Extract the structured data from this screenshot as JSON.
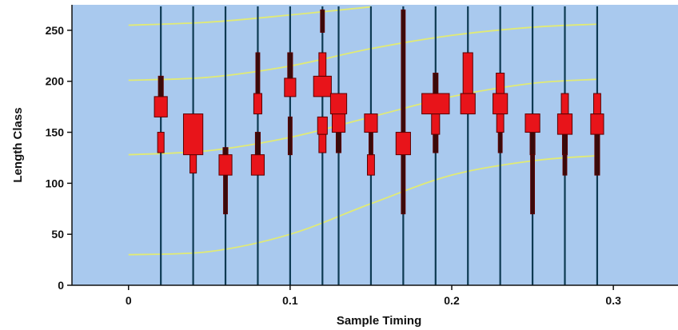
{
  "chart_data": {
    "type": "scatter",
    "title": "",
    "xlabel": "Sample Timing",
    "ylabel": "Length Class",
    "xlim": [
      -0.035,
      0.34
    ],
    "ylim": [
      0,
      275
    ],
    "x_ticks": [
      0,
      0.1,
      0.2,
      0.3
    ],
    "x_tick_labels": [
      "0",
      "0.1",
      "0.2",
      "0.3"
    ],
    "y_ticks": [
      0,
      50,
      100,
      150,
      200,
      250
    ],
    "y_tick_labels": [
      "0",
      "50",
      "100",
      "150",
      "200",
      "250"
    ],
    "grid": false,
    "legend": "none",
    "colors": {
      "plot_background": "#a9c9ee",
      "sample_line": "#0d3a52",
      "frequency_bar": "#e8141a",
      "frequency_bar_edge": "#5a0000",
      "growth_curve": "#e4ec6e"
    },
    "sample_times": [
      0.02,
      0.04,
      0.06,
      0.08,
      0.1,
      0.12,
      0.13,
      0.15,
      0.17,
      0.19,
      0.21,
      0.23,
      0.25,
      0.27,
      0.29
    ],
    "length_frequency_bars": [
      {
        "x": 0.02,
        "segments": [
          [
            130,
            150,
            0.002
          ],
          [
            165,
            185,
            0.004
          ],
          [
            185,
            205,
            0.0015
          ]
        ]
      },
      {
        "x": 0.04,
        "segments": [
          [
            110,
            128,
            0.002
          ],
          [
            128,
            168,
            0.006
          ]
        ]
      },
      {
        "x": 0.06,
        "segments": [
          [
            70,
            108,
            0.0012
          ],
          [
            108,
            128,
            0.004
          ],
          [
            128,
            135,
            0.0015
          ]
        ]
      },
      {
        "x": 0.08,
        "segments": [
          [
            108,
            128,
            0.004
          ],
          [
            128,
            150,
            0.0015
          ],
          [
            168,
            188,
            0.0025
          ],
          [
            188,
            228,
            0.0012
          ]
        ]
      },
      {
        "x": 0.1,
        "segments": [
          [
            128,
            165,
            0.0012
          ],
          [
            185,
            203,
            0.0035
          ],
          [
            203,
            228,
            0.0015
          ]
        ]
      },
      {
        "x": 0.12,
        "segments": [
          [
            130,
            148,
            0.0022
          ],
          [
            148,
            165,
            0.003
          ],
          [
            185,
            205,
            0.0055
          ],
          [
            205,
            228,
            0.0022
          ],
          [
            248,
            270,
            0.0012
          ]
        ]
      },
      {
        "x": 0.13,
        "segments": [
          [
            130,
            150,
            0.0015
          ],
          [
            150,
            168,
            0.004
          ],
          [
            168,
            188,
            0.005
          ]
        ]
      },
      {
        "x": 0.15,
        "segments": [
          [
            108,
            128,
            0.0022
          ],
          [
            128,
            150,
            0.0012
          ],
          [
            150,
            168,
            0.004
          ]
        ]
      },
      {
        "x": 0.17,
        "segments": [
          [
            70,
            128,
            0.0012
          ],
          [
            128,
            150,
            0.0045
          ],
          [
            150,
            270,
            0.0012
          ]
        ]
      },
      {
        "x": 0.19,
        "segments": [
          [
            130,
            148,
            0.0015
          ],
          [
            148,
            168,
            0.0025
          ],
          [
            168,
            188,
            0.0085
          ],
          [
            188,
            208,
            0.0015
          ]
        ]
      },
      {
        "x": 0.21,
        "segments": [
          [
            168,
            188,
            0.0045
          ],
          [
            188,
            228,
            0.003
          ]
        ]
      },
      {
        "x": 0.23,
        "segments": [
          [
            130,
            150,
            0.0012
          ],
          [
            150,
            168,
            0.0022
          ],
          [
            168,
            188,
            0.0045
          ],
          [
            188,
            208,
            0.0025
          ]
        ]
      },
      {
        "x": 0.25,
        "segments": [
          [
            70,
            128,
            0.0012
          ],
          [
            128,
            150,
            0.0015
          ],
          [
            150,
            168,
            0.0045
          ]
        ]
      },
      {
        "x": 0.27,
        "segments": [
          [
            108,
            128,
            0.0012
          ],
          [
            128,
            148,
            0.0015
          ],
          [
            148,
            168,
            0.0045
          ],
          [
            168,
            188,
            0.0022
          ]
        ]
      },
      {
        "x": 0.29,
        "segments": [
          [
            108,
            148,
            0.0015
          ],
          [
            148,
            168,
            0.004
          ],
          [
            168,
            188,
            0.0022
          ]
        ]
      }
    ],
    "growth_curves": [
      {
        "x": [
          0,
          0.05,
          0.1,
          0.15,
          0.2,
          0.25,
          0.29
        ],
        "y": [
          30,
          33,
          50,
          80,
          108,
          122,
          127
        ]
      },
      {
        "x": [
          0,
          0.05,
          0.1,
          0.15,
          0.2,
          0.25,
          0.29
        ],
        "y": [
          128,
          132,
          145,
          165,
          185,
          198,
          202
        ]
      },
      {
        "x": [
          0,
          0.05,
          0.1,
          0.15,
          0.2,
          0.25,
          0.29
        ],
        "y": [
          201,
          204,
          215,
          232,
          245,
          253,
          256
        ]
      },
      {
        "x": [
          0,
          0.05,
          0.1,
          0.15
        ],
        "y": [
          255,
          258,
          265,
          273
        ]
      }
    ]
  }
}
